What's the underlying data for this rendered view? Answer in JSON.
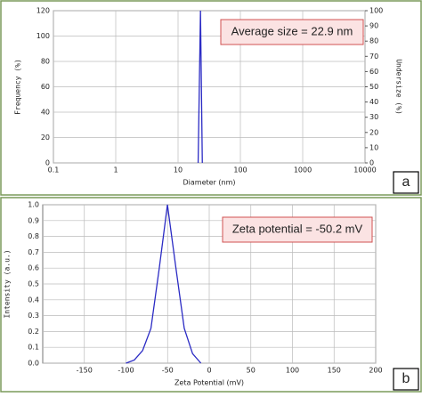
{
  "chart_data": [
    {
      "type": "line",
      "panel": "a",
      "xscale": "log",
      "xlabel": "Diameter (nm)",
      "ylabel": "Frequency (%)",
      "y2label": "Undersize (%)",
      "annotation": "Average size = 22.9 nm",
      "x": [
        21,
        22.9,
        24.5
      ],
      "series": [
        {
          "color": "#2b2bc4",
          "values": [
            0,
            120,
            0
          ]
        }
      ],
      "xlim": [
        0.1,
        10000
      ],
      "xticks": [
        0.1,
        1,
        10,
        100,
        1000,
        10000
      ],
      "ylim": [
        0,
        120
      ],
      "yticks": [
        0,
        20,
        40,
        60,
        80,
        100,
        120
      ],
      "y2lim": [
        0,
        100
      ],
      "y2ticks": [
        0,
        10,
        20,
        30,
        40,
        50,
        60,
        70,
        80,
        90,
        100
      ],
      "grid": true
    },
    {
      "type": "line",
      "panel": "b",
      "xlabel": "Zeta Potential (mV)",
      "ylabel": "Intensity (a.u.)",
      "annotation": "Zeta potential = -50.2 mV",
      "x": [
        -100,
        -90,
        -80,
        -70,
        -60,
        -50.2,
        -40,
        -30,
        -20,
        -10
      ],
      "series": [
        {
          "color": "#2b2bc4",
          "values": [
            0,
            0.02,
            0.08,
            0.22,
            0.6,
            1.0,
            0.6,
            0.22,
            0.06,
            0
          ]
        }
      ],
      "xlim": [
        -200,
        200
      ],
      "xticks": [
        -150,
        -100,
        -50,
        0,
        50,
        100,
        150,
        200
      ],
      "ylim": [
        0,
        1
      ],
      "yticks": [
        {
          "value": 0,
          "label": "0.0"
        },
        0.1,
        0.2,
        0.3,
        0.4,
        0.5,
        0.6,
        0.7,
        0.8,
        0.9,
        {
          "value": 1,
          "label": "1.0"
        }
      ],
      "grid": true
    }
  ]
}
